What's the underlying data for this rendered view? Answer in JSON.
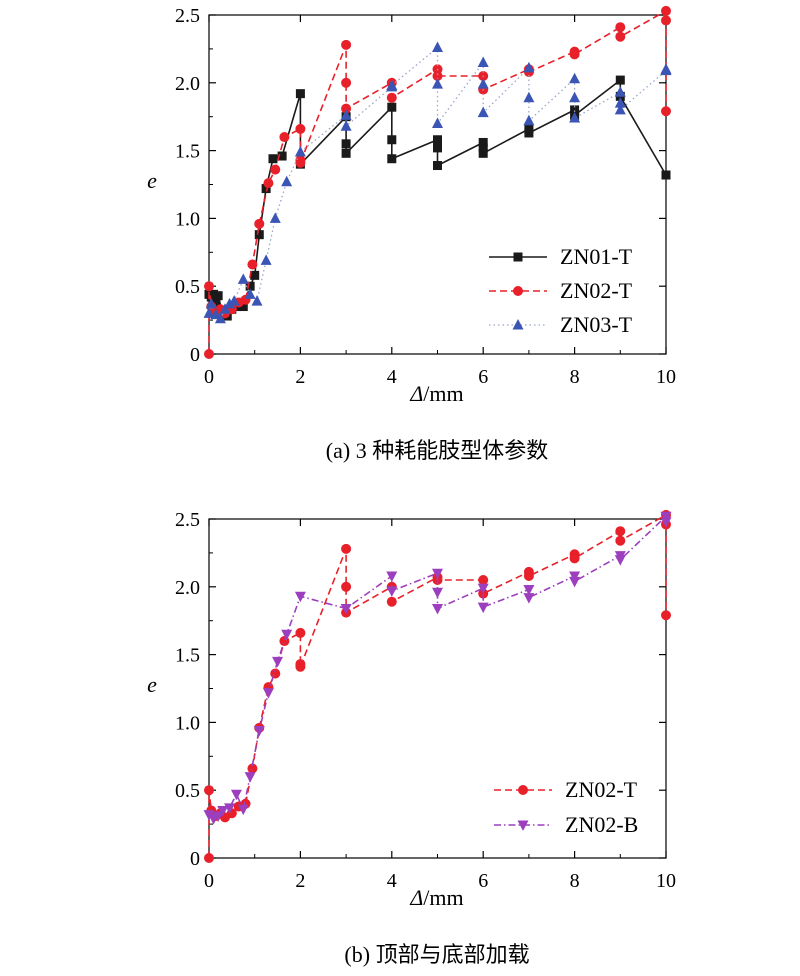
{
  "colors": {
    "ZN01-T": "#1a1a1a",
    "ZN02-T": "#e8202a",
    "ZN03-T": "#3a55b4",
    "ZN02-B": "#9c3fbf"
  },
  "chart_data": [
    {
      "type": "line",
      "caption": "(a) 3 种耗能肢型体参数",
      "xlabel_symbol": "Δ",
      "xlabel_unit": "/mm",
      "ylabel": "e",
      "xlim": [
        0,
        10
      ],
      "ylim": [
        0,
        2.5
      ],
      "xticks": [
        0,
        2,
        4,
        6,
        8,
        10
      ],
      "yticks": [
        0,
        0.5,
        1.0,
        1.5,
        2.0,
        2.5
      ],
      "ytick_labels": [
        "0",
        "0.5",
        "1.0",
        "1.5",
        "2.0",
        "2.5"
      ],
      "grid": false,
      "legend_position": "middle-right",
      "series": [
        {
          "name": "ZN01-T",
          "style": "solid",
          "marker": "square",
          "points": [
            [
              0,
              0.44
            ],
            [
              0.05,
              0.42
            ],
            [
              0.1,
              0.44
            ],
            [
              0.15,
              0.38
            ],
            [
              0.2,
              0.43
            ],
            [
              0.3,
              0.3
            ],
            [
              0.4,
              0.28
            ],
            [
              0.5,
              0.33
            ],
            [
              0.6,
              0.35
            ],
            [
              0.75,
              0.35
            ],
            [
              0.9,
              0.5
            ],
            [
              1.0,
              0.58
            ],
            [
              1.1,
              0.88
            ],
            [
              1.25,
              1.22
            ],
            [
              1.4,
              1.44
            ],
            [
              1.6,
              1.46
            ],
            [
              2.0,
              1.92
            ],
            [
              2.0,
              1.4
            ],
            [
              3.0,
              1.75
            ],
            [
              3.0,
              1.55
            ],
            [
              3.0,
              1.48
            ],
            [
              4.0,
              1.82
            ],
            [
              4.0,
              1.58
            ],
            [
              4.0,
              1.44
            ],
            [
              5.0,
              1.58
            ],
            [
              5.0,
              1.52
            ],
            [
              5.0,
              1.39
            ],
            [
              6.0,
              1.56
            ],
            [
              6.0,
              1.52
            ],
            [
              6.0,
              1.48
            ],
            [
              7.0,
              1.66
            ],
            [
              7.0,
              1.63
            ],
            [
              8.0,
              1.8
            ],
            [
              8.0,
              1.76
            ],
            [
              9.0,
              2.02
            ],
            [
              9.0,
              1.9
            ],
            [
              10.0,
              1.32
            ]
          ]
        },
        {
          "name": "ZN02-T",
          "style": "dashed",
          "marker": "circle",
          "points": [
            [
              0,
              0
            ],
            [
              0,
              0.5
            ],
            [
              0.05,
              0.35
            ],
            [
              0.15,
              0.31
            ],
            [
              0.25,
              0.33
            ],
            [
              0.35,
              0.3
            ],
            [
              0.5,
              0.33
            ],
            [
              0.65,
              0.38
            ],
            [
              0.8,
              0.4
            ],
            [
              0.95,
              0.66
            ],
            [
              1.1,
              0.96
            ],
            [
              1.3,
              1.26
            ],
            [
              1.45,
              1.36
            ],
            [
              1.65,
              1.6
            ],
            [
              2.0,
              1.66
            ],
            [
              2.0,
              1.43
            ],
            [
              2.0,
              1.41
            ],
            [
              3.0,
              2.28
            ],
            [
              3.0,
              2.0
            ],
            [
              3.0,
              1.81
            ],
            [
              4.0,
              2.0
            ],
            [
              4.0,
              1.89
            ],
            [
              5.0,
              2.1
            ],
            [
              5.0,
              2.05
            ],
            [
              6.0,
              2.05
            ],
            [
              6.0,
              1.95
            ],
            [
              7.0,
              2.1
            ],
            [
              7.0,
              2.08
            ],
            [
              8.0,
              2.23
            ],
            [
              8.0,
              2.21
            ],
            [
              9.0,
              2.41
            ],
            [
              9.0,
              2.34
            ],
            [
              10.0,
              2.53
            ],
            [
              10.0,
              2.46
            ],
            [
              10.0,
              1.79
            ]
          ]
        },
        {
          "name": "ZN03-T",
          "style": "dotted",
          "marker": "triangle-up",
          "points": [
            [
              0,
              0.3
            ],
            [
              0.05,
              0.37
            ],
            [
              0.15,
              0.29
            ],
            [
              0.25,
              0.26
            ],
            [
              0.35,
              0.33
            ],
            [
              0.45,
              0.37
            ],
            [
              0.55,
              0.39
            ],
            [
              0.75,
              0.55
            ],
            [
              0.9,
              0.44
            ],
            [
              1.05,
              0.39
            ],
            [
              1.25,
              0.69
            ],
            [
              1.45,
              1.0
            ],
            [
              1.7,
              1.27
            ],
            [
              2.0,
              1.49
            ],
            [
              3.0,
              1.76
            ],
            [
              3.0,
              1.68
            ],
            [
              4.0,
              1.97
            ],
            [
              4.0,
              1.98
            ],
            [
              5.0,
              2.26
            ],
            [
              5.0,
              1.99
            ],
            [
              5.0,
              1.7
            ],
            [
              6.0,
              2.15
            ],
            [
              6.0,
              1.99
            ],
            [
              6.0,
              1.78
            ],
            [
              7.0,
              2.11
            ],
            [
              7.0,
              1.89
            ],
            [
              7.0,
              1.72
            ],
            [
              8.0,
              2.03
            ],
            [
              8.0,
              1.89
            ],
            [
              8.0,
              1.74
            ],
            [
              9.0,
              1.93
            ],
            [
              9.0,
              1.85
            ],
            [
              9.0,
              1.8
            ],
            [
              10.0,
              2.09
            ],
            [
              10.0,
              2.1
            ]
          ]
        }
      ]
    },
    {
      "type": "line",
      "caption": "(b) 顶部与底部加载",
      "xlabel_symbol": "Δ",
      "xlabel_unit": "/mm",
      "ylabel": "e",
      "xlim": [
        0,
        10
      ],
      "ylim": [
        0,
        2.5
      ],
      "xticks": [
        0,
        2,
        4,
        6,
        8,
        10
      ],
      "yticks": [
        0,
        0.5,
        1.0,
        1.5,
        2.0,
        2.5
      ],
      "ytick_labels": [
        "0",
        "0.5",
        "1.0",
        "1.5",
        "2.0",
        "2.5"
      ],
      "grid": false,
      "legend_position": "bottom-right",
      "series": [
        {
          "name": "ZN02-T",
          "style": "dashed",
          "marker": "circle",
          "points": [
            [
              0,
              0
            ],
            [
              0,
              0.5
            ],
            [
              0.05,
              0.35
            ],
            [
              0.15,
              0.31
            ],
            [
              0.25,
              0.33
            ],
            [
              0.35,
              0.3
            ],
            [
              0.5,
              0.33
            ],
            [
              0.65,
              0.38
            ],
            [
              0.8,
              0.4
            ],
            [
              0.95,
              0.66
            ],
            [
              1.1,
              0.96
            ],
            [
              1.3,
              1.26
            ],
            [
              1.45,
              1.36
            ],
            [
              1.65,
              1.6
            ],
            [
              2.0,
              1.66
            ],
            [
              2.0,
              1.43
            ],
            [
              2.0,
              1.41
            ],
            [
              3.0,
              2.28
            ],
            [
              3.0,
              2.0
            ],
            [
              3.0,
              1.81
            ],
            [
              4.0,
              2.0
            ],
            [
              4.0,
              1.89
            ],
            [
              5.0,
              2.07
            ],
            [
              5.0,
              2.05
            ],
            [
              6.0,
              2.05
            ],
            [
              6.0,
              1.95
            ],
            [
              7.0,
              2.11
            ],
            [
              7.0,
              2.08
            ],
            [
              8.0,
              2.24
            ],
            [
              8.0,
              2.21
            ],
            [
              9.0,
              2.41
            ],
            [
              9.0,
              2.34
            ],
            [
              10.0,
              2.53
            ],
            [
              10.0,
              2.46
            ],
            [
              10.0,
              1.79
            ]
          ]
        },
        {
          "name": "ZN02-B",
          "style": "dashdot",
          "marker": "triangle-down",
          "points": [
            [
              0,
              0.32
            ],
            [
              0.1,
              0.29
            ],
            [
              0.2,
              0.31
            ],
            [
              0.3,
              0.35
            ],
            [
              0.45,
              0.37
            ],
            [
              0.6,
              0.47
            ],
            [
              0.75,
              0.36
            ],
            [
              0.9,
              0.6
            ],
            [
              1.1,
              0.94
            ],
            [
              1.3,
              1.22
            ],
            [
              1.5,
              1.45
            ],
            [
              1.7,
              1.65
            ],
            [
              2.0,
              1.93
            ],
            [
              3.0,
              1.84
            ],
            [
              4.0,
              2.08
            ],
            [
              4.0,
              1.97
            ],
            [
              5.0,
              2.1
            ],
            [
              5.0,
              1.96
            ],
            [
              5.0,
              1.84
            ],
            [
              6.0,
              1.99
            ],
            [
              6.0,
              1.85
            ],
            [
              7.0,
              1.98
            ],
            [
              7.0,
              1.92
            ],
            [
              8.0,
              2.08
            ],
            [
              8.0,
              2.04
            ],
            [
              9.0,
              2.23
            ],
            [
              9.0,
              2.2
            ],
            [
              10.0,
              2.52
            ],
            [
              10.0,
              2.48
            ]
          ]
        }
      ]
    }
  ]
}
